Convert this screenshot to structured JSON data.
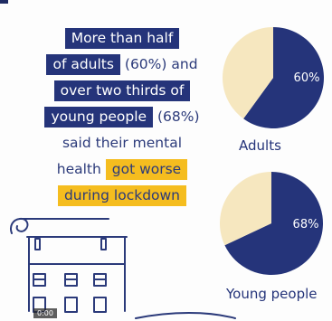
{
  "text": {
    "line1": "More than half",
    "line2_hl": "of adults",
    "line2_rest": " (60%) and",
    "line3": "over two thirds of",
    "line4_hl": "young people",
    "line4_rest": " (68%)",
    "line5": "said their mental",
    "line6_plain": "health ",
    "line6_hl": "got worse",
    "line7": "during lockdown"
  },
  "chart_data": [
    {
      "type": "pie",
      "title": "Adults",
      "slices": [
        {
          "label": "60%",
          "value": 60,
          "color": "#25347a"
        },
        {
          "label": "",
          "value": 40,
          "color": "#f6e7bf"
        }
      ]
    },
    {
      "type": "pie",
      "title": "Young people",
      "slices": [
        {
          "label": "68%",
          "value": 68,
          "color": "#25347a"
        },
        {
          "label": "",
          "value": 32,
          "color": "#f6e7bf"
        }
      ]
    }
  ],
  "video": {
    "time": "0:00"
  },
  "colors": {
    "navy": "#25347a",
    "gold": "#f5bd1f",
    "cream": "#f6e7bf"
  }
}
